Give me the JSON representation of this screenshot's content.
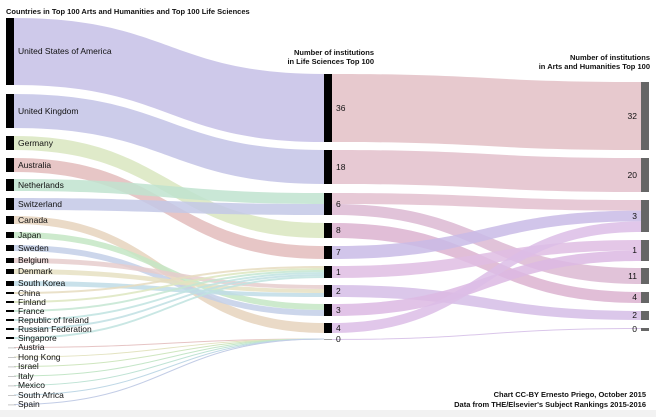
{
  "title": "Countries in Top 100 Arts and Humanities and Top 100 Life Sciences",
  "header_ls": [
    "Number of institutions",
    "in Life Sciences Top 100"
  ],
  "header_ah": [
    "Number of institutions",
    "in Arts and Humanities Top 100"
  ],
  "countries": [
    {
      "name": "United States of America",
      "ls": "36",
      "color": "#c5bfe6"
    },
    {
      "name": "United Kingdom",
      "ls": "18",
      "color": "#c3c3e6"
    },
    {
      "name": "Germany",
      "ls": "8",
      "color": "#d9e6bf"
    },
    {
      "name": "Australia",
      "ls": "7",
      "color": "#e3bcbc"
    },
    {
      "name": "Netherlands",
      "ls": "6",
      "color": "#bfe3cf"
    },
    {
      "name": "Switzerland",
      "ls": "6",
      "color": "#c3c8e6"
    },
    {
      "name": "Canada",
      "ls": "4",
      "color": "#e6d3bd"
    },
    {
      "name": "Japan",
      "ls": "3",
      "color": "#c4e6c4"
    },
    {
      "name": "Sweden",
      "ls": "3",
      "color": "#c3cfe8"
    },
    {
      "name": "Belgium",
      "ls": "2",
      "color": "#e6cccc"
    },
    {
      "name": "Denmark",
      "ls": "2",
      "color": "#e6e0c2"
    },
    {
      "name": "South Korea",
      "ls": "2",
      "color": "#c0dce6"
    },
    {
      "name": "China",
      "ls": "1",
      "color": "#e6dcbf"
    },
    {
      "name": "Finland",
      "ls": "1",
      "color": "#dde6bf"
    },
    {
      "name": "France",
      "ls": "1",
      "color": "#c4e6d2"
    },
    {
      "name": "Republic of Ireland",
      "ls": "1",
      "color": "#bfe3e0"
    },
    {
      "name": "Russian Federation",
      "ls": "1",
      "color": "#bfdfe3"
    },
    {
      "name": "Singapore",
      "ls": "1",
      "color": "#bfe3df"
    },
    {
      "name": "Austria",
      "ls": "0",
      "color": "#e6c4c4"
    },
    {
      "name": "Hong Kong",
      "ls": "0",
      "color": "#e3e3c0"
    },
    {
      "name": "Israel",
      "ls": "0",
      "color": "#cfe6bf"
    },
    {
      "name": "Italy",
      "ls": "0",
      "color": "#c4e6c8"
    },
    {
      "name": "Mexico",
      "ls": "0",
      "color": "#bfe3d5"
    },
    {
      "name": "South Africa",
      "ls": "0",
      "color": "#bfd8e6"
    },
    {
      "name": "Spain",
      "ls": "0",
      "color": "#c3cde6"
    }
  ],
  "ls_nodes": [
    "36",
    "18",
    "6",
    "8",
    "7",
    "1",
    "2",
    "3",
    "4",
    "0"
  ],
  "ah_nodes": [
    "32",
    "20",
    "3",
    "1",
    "11",
    "4",
    "2",
    "0"
  ],
  "ls_to_ah": [
    {
      "from": "36",
      "to": "32",
      "color": "#e3bfc6"
    },
    {
      "from": "18",
      "to": "20",
      "color": "#e3bfcb"
    },
    {
      "from": "6",
      "to": "3",
      "color": "#e3bfcf"
    },
    {
      "from": "6",
      "to": "11",
      "color": "#dcb8d2"
    },
    {
      "from": "8",
      "to": "4",
      "color": "#dcb3d0"
    },
    {
      "from": "7",
      "to": "3",
      "color": "#c9bbe6"
    },
    {
      "from": "1",
      "to": "1",
      "color": "#dfbde3"
    },
    {
      "from": "2",
      "to": "2",
      "color": "#d5bde6"
    },
    {
      "from": "3",
      "to": "1",
      "color": "#dcb8e3"
    },
    {
      "from": "4",
      "to": "3",
      "color": "#dcbde6"
    },
    {
      "from": "0",
      "to": "0",
      "color": "#d4bce6"
    }
  ],
  "credits": [
    "Chart CC-BY  Ernesto Priego, October 2015",
    "Data from THE/Elsevier's Subject Rankings 2015-2016"
  ]
}
